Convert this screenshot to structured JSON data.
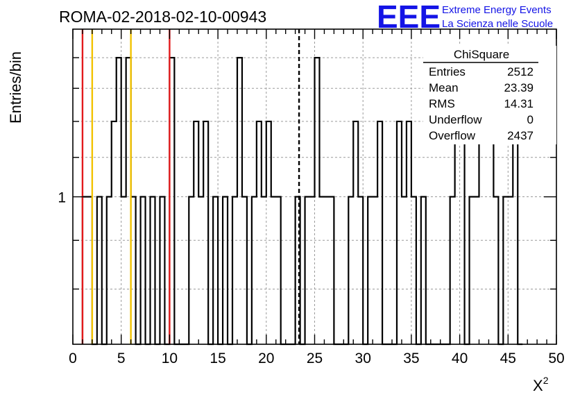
{
  "title": "ROMA-02-2018-02-10-00943",
  "logo": {
    "mark": "EEE",
    "line1": "Extreme Energy Events",
    "line2": "La Scienza nelle Scuole",
    "color": "#1414e6"
  },
  "chart_data": {
    "type": "histogram",
    "title": "ROMA-02-2018-02-10-00943",
    "xlabel": "X",
    "xlabel_superscript": "2",
    "ylabel": "Entries/bin",
    "xlim": [
      0,
      50
    ],
    "ylim": [
      0.7,
      1.5
    ],
    "yscale": "log",
    "grid": true,
    "x_ticks": [
      "0",
      "5",
      "10",
      "15",
      "20",
      "25",
      "30",
      "35",
      "40",
      "45",
      "50"
    ],
    "y_ticks": [
      "1"
    ],
    "bin_width": 0.5,
    "bins": [
      [
        1,
        1
      ],
      [
        1.5,
        1
      ],
      [
        2,
        0
      ],
      [
        2.5,
        1
      ],
      [
        3,
        0
      ],
      [
        3.5,
        1
      ],
      [
        4,
        1.2
      ],
      [
        4.5,
        1.4
      ],
      [
        5,
        1
      ],
      [
        5.5,
        1.4
      ],
      [
        6,
        1
      ],
      [
        6.5,
        0
      ],
      [
        7,
        1
      ],
      [
        7.5,
        0
      ],
      [
        8,
        1
      ],
      [
        8.5,
        0
      ],
      [
        9,
        1
      ],
      [
        9.5,
        0
      ],
      [
        10,
        1.4
      ],
      [
        10.5,
        0
      ],
      [
        11,
        0
      ],
      [
        11.5,
        0
      ],
      [
        12,
        1
      ],
      [
        12.5,
        1.2
      ],
      [
        13,
        1
      ],
      [
        13.5,
        1.2
      ],
      [
        14,
        0
      ],
      [
        14.5,
        1
      ],
      [
        15,
        0
      ],
      [
        15.5,
        1
      ],
      [
        16,
        0
      ],
      [
        16.5,
        1
      ],
      [
        17,
        1.4
      ],
      [
        17.5,
        1
      ],
      [
        18,
        0
      ],
      [
        18.5,
        1
      ],
      [
        19,
        1.2
      ],
      [
        19.5,
        1
      ],
      [
        20,
        1.2
      ],
      [
        20.5,
        1
      ],
      [
        21,
        1
      ],
      [
        21.5,
        0
      ],
      [
        22,
        0
      ],
      [
        22.5,
        0
      ],
      [
        23,
        1
      ],
      [
        23.5,
        0
      ],
      [
        24,
        1
      ],
      [
        24.5,
        1
      ],
      [
        25,
        1.4
      ],
      [
        25.5,
        1
      ],
      [
        26,
        1
      ],
      [
        26.5,
        1
      ],
      [
        27,
        0
      ],
      [
        27.5,
        0
      ],
      [
        28,
        0
      ],
      [
        28.5,
        1
      ],
      [
        29,
        1.2
      ],
      [
        29.5,
        1
      ],
      [
        30,
        0
      ],
      [
        30.5,
        1
      ],
      [
        31,
        1
      ],
      [
        31.5,
        1.2
      ],
      [
        32,
        0
      ],
      [
        32.5,
        0
      ],
      [
        33,
        0
      ],
      [
        33.5,
        1.2
      ],
      [
        34,
        1
      ],
      [
        34.5,
        1.2
      ],
      [
        35,
        1
      ],
      [
        35.5,
        0
      ],
      [
        36,
        1
      ],
      [
        36.5,
        0
      ],
      [
        37,
        0
      ],
      [
        37.5,
        0
      ],
      [
        38,
        0
      ],
      [
        38.5,
        0
      ],
      [
        39,
        1
      ],
      [
        39.5,
        1.2
      ],
      [
        40,
        1.2
      ],
      [
        40.5,
        0
      ],
      [
        41,
        1
      ],
      [
        41.5,
        1
      ],
      [
        42,
        1.2
      ],
      [
        42.5,
        1.4
      ],
      [
        43,
        1.2
      ],
      [
        43.5,
        1
      ],
      [
        44,
        0
      ],
      [
        44.5,
        1
      ],
      [
        45,
        1
      ],
      [
        45.5,
        1.4
      ],
      [
        46,
        0
      ]
    ],
    "reference_lines": [
      {
        "x": 1,
        "color": "#e31a1c",
        "style": "solid"
      },
      {
        "x": 2,
        "color": "#f2c200",
        "style": "solid"
      },
      {
        "x": 6,
        "color": "#f2c200",
        "style": "solid"
      },
      {
        "x": 10,
        "color": "#e31a1c",
        "style": "solid"
      },
      {
        "x": 23.39,
        "color": "#000000",
        "style": "dashed"
      }
    ],
    "stats_box": {
      "title": "ChiSquare",
      "rows": [
        {
          "label": "Entries",
          "value": "2512"
        },
        {
          "label": "Mean",
          "value": "23.39"
        },
        {
          "label": "RMS",
          "value": "14.31"
        },
        {
          "label": "Underflow",
          "value": "0"
        },
        {
          "label": "Overflow",
          "value": "2437"
        }
      ]
    }
  }
}
